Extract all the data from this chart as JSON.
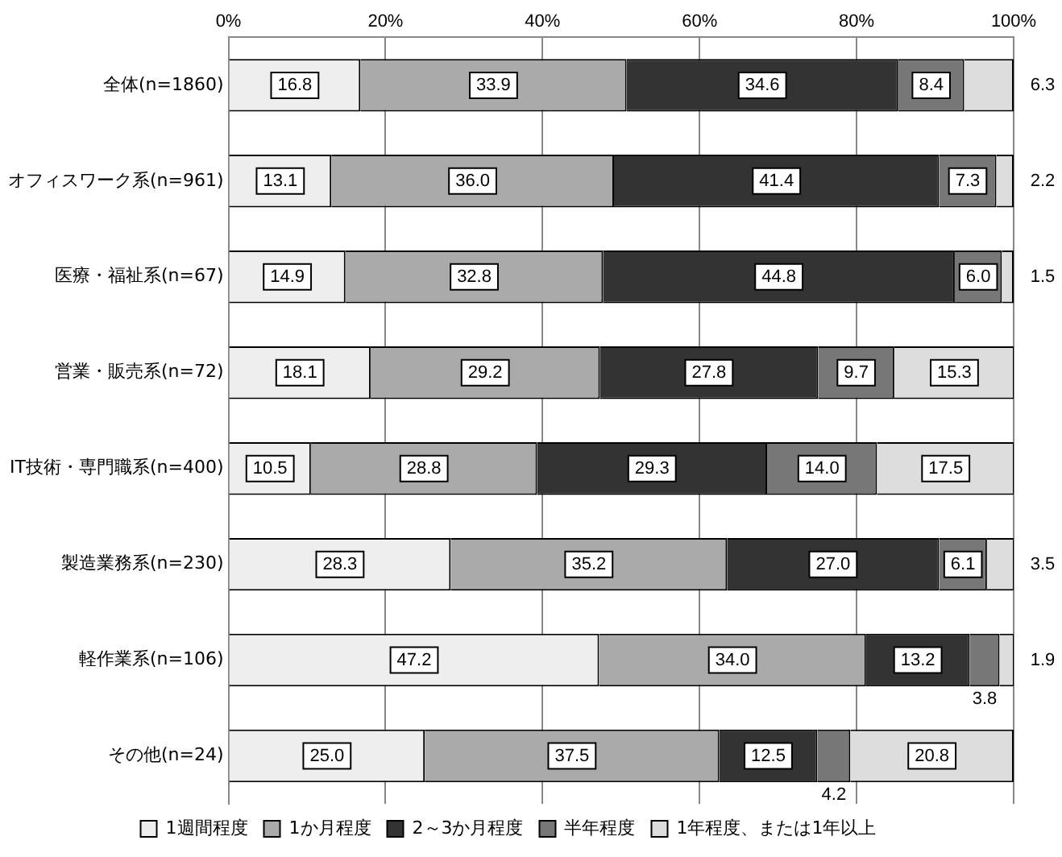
{
  "chart_data": {
    "type": "bar",
    "orientation": "horizontal",
    "stacked": true,
    "grid": "x",
    "legend": "bottom",
    "categories": [
      "全体(n=1860)",
      "オフィスワーク系(n=961)",
      "医療・福祉系(n=67)",
      "営業・販売系(n=72)",
      "IT技術・専門職系(n=400)",
      "製造業務系(n=230)",
      "軽作業系(n=106)",
      "その他(n=24)"
    ],
    "xlim": [
      0,
      100
    ],
    "xticks": [
      {
        "value": 0,
        "label": "0%"
      },
      {
        "value": 20,
        "label": "20%"
      },
      {
        "value": 40,
        "label": "40%"
      },
      {
        "value": 60,
        "label": "60%"
      },
      {
        "value": 80,
        "label": "80%"
      },
      {
        "value": 100,
        "label": "100%"
      }
    ],
    "series": [
      {
        "name": "1週間程度",
        "color": "#eeeeee",
        "values": [
          16.8,
          13.1,
          14.9,
          18.1,
          10.5,
          28.3,
          47.2,
          25.0
        ],
        "value_labels": [
          "16.8",
          "13.1",
          "14.9",
          "18.1",
          "10.5",
          "28.3",
          "47.2",
          "25.0"
        ]
      },
      {
        "name": "1か月程度",
        "color": "#aaaaaa",
        "values": [
          33.9,
          36.0,
          32.8,
          29.2,
          28.8,
          35.2,
          34.0,
          37.5
        ],
        "value_labels": [
          "33.9",
          "36.0",
          "32.8",
          "29.2",
          "28.8",
          "35.2",
          "34.0",
          "37.5"
        ]
      },
      {
        "name": "2～3か月程度",
        "color": "#333333",
        "values": [
          34.6,
          41.4,
          44.8,
          27.8,
          29.3,
          27.0,
          13.2,
          12.5
        ],
        "value_labels": [
          "34.6",
          "41.4",
          "44.8",
          "27.8",
          "29.3",
          "27.0",
          "13.2",
          "12.5"
        ]
      },
      {
        "name": "半年程度",
        "color": "#777777",
        "values": [
          8.4,
          7.3,
          6.0,
          9.7,
          14.0,
          6.1,
          3.8,
          4.2
        ],
        "value_labels": [
          "8.4",
          "7.3",
          "6.0",
          "9.7",
          "14.0",
          "6.1",
          "3.8",
          "4.2"
        ]
      },
      {
        "name": "1年程度、または1年以上",
        "color": "#dddddd",
        "values": [
          6.3,
          2.2,
          1.5,
          15.3,
          17.5,
          3.5,
          1.9,
          20.8
        ],
        "value_labels": [
          "6.3",
          "2.2",
          "1.5",
          "15.3",
          "17.5",
          "3.5",
          "1.9",
          "20.8"
        ]
      }
    ]
  }
}
